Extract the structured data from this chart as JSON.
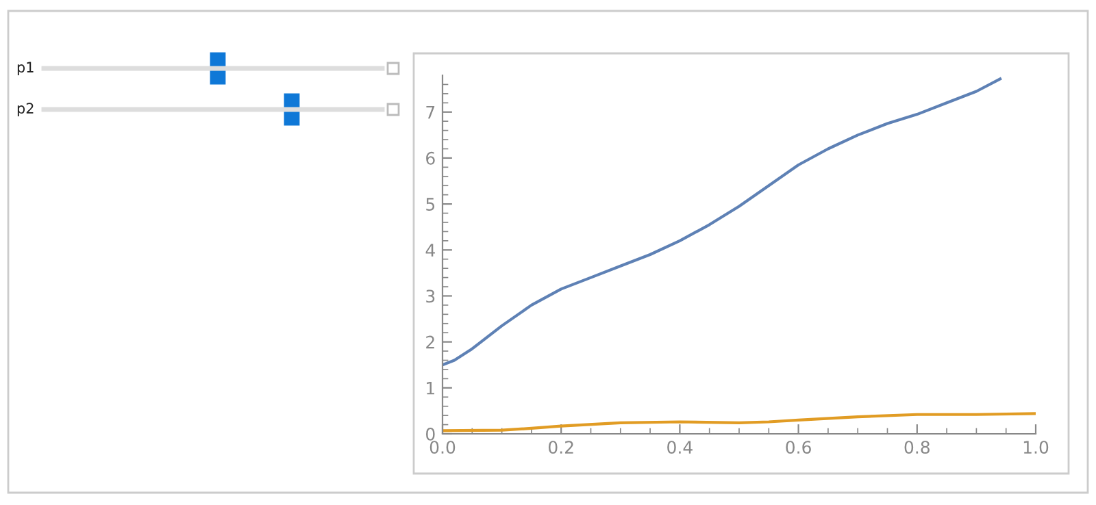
{
  "chart_data": {
    "type": "line",
    "series": [
      {
        "color": "#5e81b5",
        "x": [
          0,
          0.02,
          0.05,
          0.1,
          0.15,
          0.2,
          0.25,
          0.3,
          0.35,
          0.4,
          0.45,
          0.5,
          0.55,
          0.6,
          0.65,
          0.7,
          0.75,
          0.8,
          0.85,
          0.9,
          0.94
        ],
        "values": [
          1.5,
          1.6,
          1.85,
          2.35,
          2.8,
          3.15,
          3.4,
          3.65,
          3.9,
          4.2,
          4.55,
          4.95,
          5.4,
          5.85,
          6.2,
          6.5,
          6.75,
          6.95,
          7.2,
          7.45,
          7.72
        ]
      },
      {
        "color": "#e19c24",
        "x": [
          0,
          0.1,
          0.15,
          0.2,
          0.3,
          0.4,
          0.5,
          0.55,
          0.6,
          0.7,
          0.8,
          0.9,
          1.0
        ],
        "values": [
          0.07,
          0.08,
          0.12,
          0.17,
          0.24,
          0.26,
          0.24,
          0.26,
          0.3,
          0.37,
          0.42,
          0.42,
          0.44
        ]
      }
    ],
    "xlim": [
      0,
      1.0
    ],
    "xticks": [
      {
        "value": 0,
        "label": "0.0"
      },
      0.2,
      0.4,
      0.6,
      0.8,
      {
        "value": 1,
        "label": "1.0"
      }
    ],
    "ylim": [
      0,
      7.8
    ],
    "yticks": [
      0,
      1,
      2,
      3,
      4,
      5,
      6,
      7
    ],
    "grid": false,
    "legend": false,
    "annotations": [
      "p1",
      "p2"
    ]
  }
}
